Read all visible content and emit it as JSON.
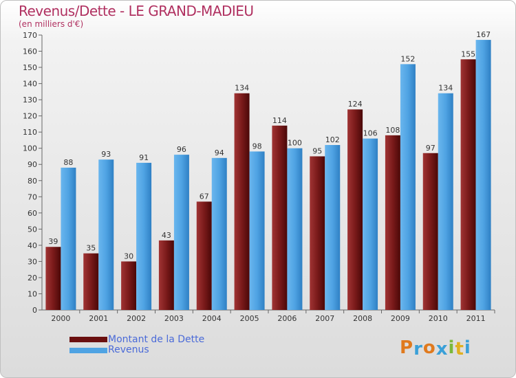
{
  "chart_data": {
    "type": "bar",
    "title": "Revenus/Dette - LE GRAND-MADIEU",
    "subtitle": "(en milliers d'€)",
    "categories": [
      "2000",
      "2001",
      "2002",
      "2003",
      "2004",
      "2005",
      "2006",
      "2007",
      "2008",
      "2009",
      "2010",
      "2011"
    ],
    "series": [
      {
        "name": "Montant de la Dette",
        "color": "#7a1a1a",
        "values": [
          39,
          35,
          30,
          43,
          67,
          134,
          114,
          95,
          124,
          108,
          97,
          155
        ]
      },
      {
        "name": "Revenus",
        "color": "#4fa3e3",
        "values": [
          88,
          93,
          91,
          96,
          94,
          98,
          100,
          102,
          106,
          152,
          134,
          167
        ]
      }
    ],
    "ylim": [
      0,
      170
    ],
    "yticks": [
      0,
      10,
      20,
      30,
      40,
      50,
      60,
      70,
      80,
      90,
      100,
      110,
      120,
      130,
      140,
      150,
      160,
      170
    ],
    "grid": false,
    "legend_position": "bottom-left"
  },
  "logo": {
    "letters": [
      "P",
      "r",
      "o",
      "x",
      "i",
      "t",
      "i"
    ],
    "colors": [
      "#e07a1e",
      "#3aa0d8",
      "#e07a1e",
      "#3aa0d8",
      "#7ab83a",
      "#e0b020",
      "#3aa0d8"
    ]
  }
}
